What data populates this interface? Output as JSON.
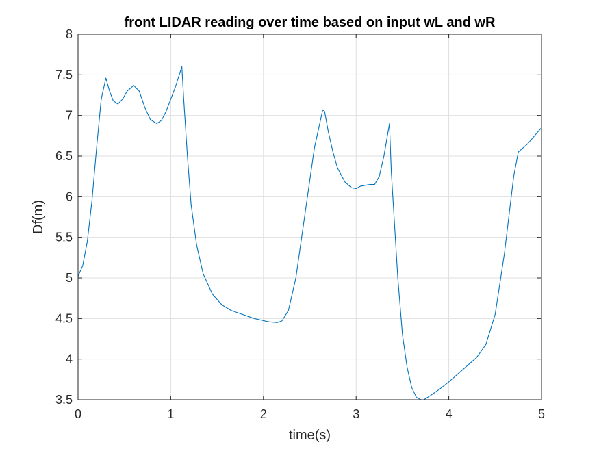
{
  "chart_data": {
    "type": "line",
    "title": "front LIDAR reading over time based on input wL and wR",
    "xlabel": "time(s)",
    "ylabel": "Df(m)",
    "xlim": [
      0,
      5
    ],
    "ylim": [
      3.5,
      8
    ],
    "xticks": [
      0,
      1,
      2,
      3,
      4,
      5
    ],
    "yticks": [
      3.5,
      4,
      4.5,
      5,
      5.5,
      6,
      6.5,
      7,
      7.5,
      8
    ],
    "xtick_labels": [
      "0",
      "1",
      "2",
      "3",
      "4",
      "5"
    ],
    "ytick_labels": [
      "3.5",
      "4",
      "4.5",
      "5",
      "5.5",
      "6",
      "6.5",
      "7",
      "7.5",
      "8"
    ],
    "grid": true,
    "line_color": "#0072BD",
    "series": [
      {
        "x": [
          0,
          0.05,
          0.1,
          0.15,
          0.2,
          0.25,
          0.3,
          0.34,
          0.38,
          0.43,
          0.48,
          0.53,
          0.6,
          0.66,
          0.72,
          0.78,
          0.85,
          0.9,
          0.95,
          1.0,
          1.05,
          1.12,
          1.14,
          1.18,
          1.22,
          1.28,
          1.35,
          1.45,
          1.55,
          1.65,
          1.75,
          1.9,
          2.05,
          2.15,
          2.2,
          2.27,
          2.35,
          2.45,
          2.55,
          2.64,
          2.66,
          2.7,
          2.75,
          2.8,
          2.88,
          2.95,
          3.0,
          3.05,
          3.1,
          3.15,
          3.2,
          3.25,
          3.3,
          3.36,
          3.38,
          3.45,
          3.5,
          3.55,
          3.6,
          3.65,
          3.7,
          3.73,
          3.8,
          3.9,
          4.0,
          4.1,
          4.2,
          4.3,
          4.4,
          4.5,
          4.6,
          4.7,
          4.75,
          4.85,
          5.0
        ],
        "y": [
          5.02,
          5.15,
          5.45,
          5.95,
          6.6,
          7.2,
          7.46,
          7.3,
          7.18,
          7.14,
          7.2,
          7.3,
          7.37,
          7.3,
          7.1,
          6.95,
          6.9,
          6.94,
          7.05,
          7.2,
          7.35,
          7.6,
          7.2,
          6.5,
          5.9,
          5.4,
          5.05,
          4.8,
          4.67,
          4.6,
          4.56,
          4.5,
          4.46,
          4.45,
          4.47,
          4.6,
          5.0,
          5.8,
          6.6,
          7.07,
          7.05,
          6.8,
          6.55,
          6.35,
          6.18,
          6.11,
          6.1,
          6.13,
          6.14,
          6.15,
          6.15,
          6.25,
          6.5,
          6.9,
          6.3,
          5.0,
          4.3,
          3.9,
          3.65,
          3.53,
          3.5,
          3.5,
          3.55,
          3.63,
          3.72,
          3.82,
          3.92,
          4.02,
          4.18,
          4.55,
          5.3,
          6.25,
          6.55,
          6.65,
          6.85
        ]
      }
    ]
  }
}
